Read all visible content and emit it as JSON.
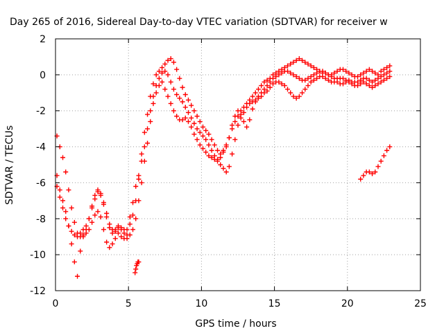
{
  "chart_data": {
    "type": "scatter",
    "title": "Day 265 of 2016, Sidereal Day-to-day VTEC variation (SDTVAR) for receiver w",
    "xlabel": "GPS time / hours",
    "ylabel": "SDTVAR / TECUs",
    "xlim": [
      0,
      25
    ],
    "ylim": [
      -12,
      2
    ],
    "xticks": [
      "0",
      "5",
      "10",
      "15",
      "20",
      "25"
    ],
    "yticks": [
      "-12",
      "-10",
      "-8",
      "-6",
      "-4",
      "-2",
      "0",
      "2"
    ],
    "grid": true,
    "marker": "plus",
    "color": "#ff0000",
    "series": [
      {
        "x": [
          0.1,
          0.3,
          0.5,
          0.7,
          0.9,
          1.1,
          1.3,
          1.5,
          1.7,
          1.9,
          2.1,
          2.3,
          2.5,
          2.7,
          2.9,
          3.1,
          3.3,
          3.5,
          3.7,
          3.9,
          4.1,
          4.3,
          4.5,
          4.7,
          4.9,
          5.1,
          5.3,
          5.5,
          5.7,
          5.9,
          6.1,
          6.3,
          6.5,
          6.7,
          6.9,
          7.1,
          7.3,
          7.5,
          7.7,
          7.9,
          8.1,
          8.3,
          8.5,
          8.7,
          8.9,
          9.1,
          9.3,
          9.5,
          9.7,
          9.9,
          10.1,
          10.3,
          10.5,
          10.7,
          10.9,
          11.1,
          11.3,
          11.5,
          11.7,
          11.9,
          12.1,
          12.3,
          12.5,
          12.7,
          12.9,
          13.1,
          13.3,
          13.5,
          13.7,
          13.9,
          14.1,
          14.3,
          14.5,
          14.7,
          14.9,
          15.1,
          15.3,
          15.5,
          15.7,
          15.9,
          16.1,
          16.3,
          16.5,
          16.7,
          16.9,
          17.1,
          17.3,
          17.5,
          17.7,
          17.9,
          18.1,
          18.3,
          18.5,
          18.7,
          18.9,
          19.1,
          19.3,
          19.5,
          19.7,
          19.9,
          20.1,
          20.3,
          20.5,
          20.7,
          20.9,
          21.1,
          21.3,
          21.5,
          21.7,
          21.9,
          22.1,
          22.3,
          22.5,
          22.7,
          22.9
        ],
        "y": [
          -6.2,
          -6.8,
          -7.4,
          -8.0,
          -8.4,
          -8.7,
          -8.9,
          -9.0,
          -8.8,
          -8.6,
          -8.4,
          -8.0,
          -7.4,
          -6.9,
          -6.5,
          -6.7,
          -7.2,
          -7.9,
          -8.5,
          -8.8,
          -8.7,
          -8.5,
          -8.6,
          -8.8,
          -8.9,
          -8.3,
          -7.8,
          -7.0,
          -5.8,
          -4.8,
          -4.0,
          -3.0,
          -2.0,
          -1.2,
          -0.6,
          -0.2,
          0.1,
          0.2,
          0.0,
          -0.4,
          -0.8,
          -1.1,
          -1.3,
          -1.5,
          -1.8,
          -2.1,
          -2.4,
          -2.7,
          -3.0,
          -3.2,
          -3.4,
          -3.6,
          -3.9,
          -4.2,
          -4.5,
          -4.7,
          -4.6,
          -4.3,
          -4.0,
          -3.5,
          -2.8,
          -2.3,
          -2.0,
          -2.2,
          -2.6,
          -2.9,
          -2.5,
          -1.9,
          -1.5,
          -1.2,
          -1.0,
          -0.8,
          -0.6,
          -0.4,
          -0.2,
          -0.1,
          0.0,
          0.1,
          0.2,
          0.2,
          0.1,
          0.0,
          -0.1,
          -0.2,
          -0.3,
          -0.3,
          -0.2,
          -0.1,
          0.0,
          0.1,
          0.2,
          0.2,
          0.1,
          0.0,
          -0.1,
          -0.2,
          -0.2,
          -0.2,
          -0.2,
          -0.3,
          -0.3,
          -0.4,
          -0.4,
          -0.4,
          -0.3,
          -0.2,
          -0.2,
          -0.3,
          -0.4,
          -0.3,
          -0.2,
          -0.1,
          0.0,
          0.1,
          0.2
        ]
      },
      {
        "x": [
          0.1,
          0.3,
          0.5,
          0.7,
          0.9,
          1.1,
          1.3,
          1.5,
          1.7,
          1.9,
          2.1,
          2.3,
          2.5,
          2.7,
          2.9,
          3.1,
          3.3,
          3.5,
          3.7,
          3.9,
          4.1,
          4.3,
          4.5,
          4.7,
          4.9,
          5.1,
          5.3,
          5.5,
          5.7,
          5.9,
          6.1,
          6.3,
          6.5,
          6.7,
          6.9,
          7.1,
          7.3,
          7.5,
          7.7,
          7.9,
          8.1,
          8.3,
          8.5,
          8.7,
          8.9,
          9.1,
          9.3,
          9.5,
          9.7,
          9.9,
          10.1,
          10.3,
          10.5,
          10.7,
          10.9,
          11.1,
          11.3,
          11.5,
          11.7,
          11.9,
          12.1,
          12.3,
          12.5,
          12.7,
          12.9,
          13.1,
          13.3,
          13.5,
          13.7,
          13.9,
          14.1,
          14.3,
          14.5,
          14.7,
          14.9,
          15.1,
          15.3,
          15.5,
          15.7,
          15.9,
          16.1,
          16.3,
          16.5,
          16.7,
          16.9,
          17.1,
          17.3,
          17.5,
          17.7,
          17.9,
          18.1,
          18.3,
          18.5,
          18.7,
          18.9,
          19.1,
          19.3,
          19.5,
          19.7,
          19.9,
          20.1,
          20.3,
          20.5,
          20.7,
          20.9,
          21.1,
          21.3,
          21.5,
          21.7,
          21.9,
          22.1,
          22.3,
          22.5,
          22.7,
          22.9
        ],
        "y": [
          -3.4,
          -4.0,
          -4.6,
          -5.4,
          -6.4,
          -7.4,
          -8.2,
          -8.8,
          -9.0,
          -8.9,
          -8.6,
          -8.0,
          -7.3,
          -6.7,
          -6.4,
          -6.6,
          -7.1,
          -7.7,
          -8.3,
          -8.6,
          -8.6,
          -8.4,
          -8.5,
          -8.6,
          -8.6,
          -7.9,
          -7.1,
          -6.2,
          -5.6,
          -4.4,
          -3.2,
          -2.2,
          -1.2,
          -0.5,
          0.0,
          0.2,
          0.4,
          0.6,
          0.8,
          0.9,
          0.7,
          0.3,
          -0.2,
          -0.7,
          -1.1,
          -1.4,
          -1.7,
          -2.0,
          -2.3,
          -2.6,
          -2.9,
          -3.1,
          -3.3,
          -3.6,
          -3.9,
          -4.2,
          -4.4,
          -4.2,
          -3.9,
          -3.5,
          -3.0,
          -2.6,
          -2.3,
          -2.0,
          -1.8,
          -1.6,
          -1.4,
          -1.2,
          -1.0,
          -0.8,
          -0.6,
          -0.4,
          -0.3,
          -0.2,
          0.0,
          0.1,
          0.2,
          0.3,
          0.4,
          0.5,
          0.6,
          0.7,
          0.8,
          0.9,
          0.8,
          0.7,
          0.6,
          0.5,
          0.4,
          0.3,
          0.2,
          0.1,
          0.1,
          0.0,
          0.0,
          0.1,
          0.2,
          0.3,
          0.3,
          0.2,
          0.1,
          0.0,
          -0.1,
          -0.1,
          0.0,
          0.1,
          0.2,
          0.3,
          0.2,
          0.1,
          0.0,
          0.2,
          0.3,
          0.4,
          0.5
        ]
      },
      {
        "x": [
          0.1,
          0.3,
          0.5,
          0.7,
          0.9,
          1.1,
          1.3,
          1.5,
          1.7,
          1.9,
          2.1,
          2.3,
          2.5,
          2.7,
          2.9,
          3.1,
          3.3,
          3.5,
          3.7,
          3.9,
          4.1,
          4.3,
          4.5,
          4.7,
          4.9,
          5.1,
          5.3,
          5.5,
          5.7,
          5.9,
          6.1,
          6.3,
          6.5,
          6.7,
          6.9,
          7.1,
          7.3,
          7.5,
          7.7,
          7.9,
          8.1,
          8.3,
          8.5,
          8.7,
          8.9,
          9.1,
          9.3,
          9.5,
          9.7,
          9.9,
          10.1,
          10.3,
          10.5,
          10.7,
          10.9,
          11.1,
          11.3,
          11.5,
          11.7,
          11.9,
          12.1,
          12.3,
          12.5,
          12.7,
          12.9,
          13.1,
          13.3,
          13.5,
          13.7,
          13.9,
          14.1,
          14.3,
          14.5,
          14.7,
          14.9,
          15.1,
          15.3,
          15.5,
          15.7,
          15.9,
          16.1,
          16.3,
          16.5,
          16.7,
          16.9,
          17.1,
          17.3,
          17.5,
          17.7,
          17.9,
          18.1,
          18.3,
          18.5,
          18.7,
          18.9,
          19.1,
          19.3,
          19.5,
          19.7,
          19.9,
          20.1,
          20.3,
          20.5,
          20.7,
          20.9,
          21.1,
          21.3,
          21.5,
          21.7,
          21.9,
          22.1,
          22.3,
          22.5,
          22.7,
          22.9
        ],
        "y": [
          -5.6,
          -6.4,
          -7.0,
          -7.6,
          -8.4,
          -9.4,
          -10.4,
          -11.2,
          -9.8,
          -9.0,
          -8.8,
          -8.6,
          -8.2,
          -7.8,
          -7.6,
          -7.9,
          -8.6,
          -9.3,
          -9.6,
          -9.4,
          -9.1,
          -8.8,
          -9.0,
          -9.1,
          -9.1,
          -8.9,
          -8.6,
          -8.0,
          -7.0,
          -6.0,
          -4.8,
          -3.8,
          -2.6,
          -1.6,
          -1.0,
          -0.6,
          -0.4,
          -0.8,
          -1.2,
          -1.6,
          -2.0,
          -2.3,
          -2.5,
          -2.5,
          -2.4,
          -2.6,
          -2.9,
          -3.3,
          -3.6,
          -3.9,
          -4.1,
          -4.3,
          -4.5,
          -4.6,
          -4.7,
          -4.8,
          -5.0,
          -5.2,
          -5.4,
          -5.1,
          -4.4,
          -3.6,
          -2.8,
          -2.4,
          -2.1,
          -1.8,
          -1.6,
          -1.5,
          -1.4,
          -1.3,
          -1.2,
          -1.0,
          -0.9,
          -0.7,
          -0.5,
          -0.4,
          -0.4,
          -0.5,
          -0.6,
          -0.8,
          -1.0,
          -1.2,
          -1.3,
          -1.2,
          -1.0,
          -0.8,
          -0.6,
          -0.4,
          -0.3,
          -0.2,
          -0.1,
          -0.1,
          -0.2,
          -0.3,
          -0.4,
          -0.4,
          -0.4,
          -0.5,
          -0.5,
          -0.4,
          -0.4,
          -0.5,
          -0.6,
          -0.6,
          -0.5,
          -0.4,
          -0.5,
          -0.6,
          -0.7,
          -0.6,
          -0.5,
          -0.4,
          -0.3,
          -0.2,
          -0.1
        ]
      },
      {
        "x": [
          5.45,
          5.5,
          5.55,
          5.6,
          5.65,
          5.7,
          20.9,
          21.1,
          21.3,
          21.5,
          21.7,
          21.9,
          22.1,
          22.3,
          22.5,
          22.7,
          22.9
        ],
        "y": [
          -11.0,
          -10.8,
          -10.6,
          -10.5,
          -10.4,
          -10.4,
          -5.8,
          -5.6,
          -5.4,
          -5.4,
          -5.5,
          -5.4,
          -5.1,
          -4.8,
          -4.5,
          -4.2,
          -4.0
        ]
      }
    ]
  }
}
